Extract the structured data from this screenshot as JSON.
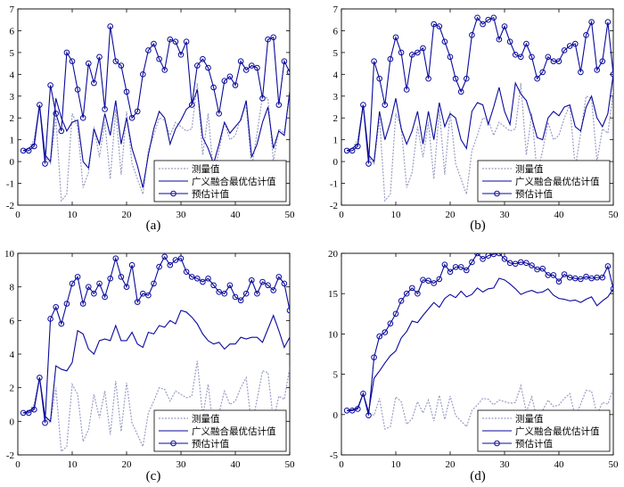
{
  "chart_data": [
    {
      "type": "line",
      "panel_label": "(a)",
      "xlim": [
        0,
        50
      ],
      "ylim": [
        -2,
        7
      ],
      "xticks": [
        0,
        10,
        20,
        30,
        40,
        50
      ],
      "yticks": [
        -2,
        -1,
        0,
        1,
        2,
        3,
        4,
        5,
        6,
        7
      ],
      "legend": [
        "测量值",
        "广义融合最优估计值",
        "预估计值"
      ],
      "legend_position": "bottom-right",
      "series": [
        {
          "name": "测量值",
          "style": "dotted-gray",
          "values": [
            0.5,
            0.6,
            1.0,
            2.6,
            0.2,
            -0.1,
            2.0,
            -1.8,
            -1.5,
            2.2,
            1.6,
            -1.2,
            -0.5,
            1.6,
            0.2,
            1.8,
            -0.8,
            2.4,
            -0.6,
            2.3,
            -0.1,
            -0.8,
            -1.5,
            0.5,
            1.2,
            2.0,
            1.9,
            1.2,
            1.8,
            1.6,
            1.4,
            1.5,
            3.6,
            0.3,
            2.2,
            -0.6,
            0.5,
            1.8,
            1.0,
            1.2,
            2.0,
            2.6,
            -0.3,
            1.3,
            3.0,
            2.9,
            0.0,
            1.5,
            1.3,
            3.2
          ]
        },
        {
          "name": "广义融合最优估计值",
          "style": "solid-blue",
          "values": [
            0.5,
            0.6,
            0.8,
            2.6,
            0.3,
            0.0,
            2.9,
            2.0,
            1.4,
            1.8,
            1.9,
            0.0,
            -0.3,
            1.5,
            0.8,
            2.2,
            1.2,
            2.8,
            0.8,
            2.0,
            0.6,
            -0.2,
            -1.2,
            0.3,
            1.5,
            2.3,
            2.0,
            0.8,
            1.5,
            1.9,
            2.4,
            2.6,
            3.3,
            1.1,
            0.6,
            -0.1,
            0.8,
            1.8,
            1.3,
            1.6,
            1.9,
            2.8,
            0.2,
            0.8,
            1.8,
            2.5,
            0.6,
            1.4,
            1.2,
            3.2
          ]
        },
        {
          "name": "预估计值",
          "style": "blue-circles",
          "values": [
            0.5,
            0.5,
            0.7,
            2.6,
            -0.1,
            3.5,
            2.2,
            1.4,
            5.0,
            4.6,
            3.3,
            2.0,
            4.5,
            3.6,
            4.8,
            2.4,
            6.2,
            4.6,
            4.4,
            3.2,
            2.0,
            2.3,
            4.0,
            5.1,
            5.4,
            4.7,
            4.2,
            5.6,
            5.5,
            4.9,
            5.5,
            2.6,
            4.4,
            4.7,
            4.3,
            3.4,
            2.2,
            3.7,
            3.9,
            3.5,
            4.6,
            4.2,
            4.4,
            4.3,
            2.9,
            5.6,
            5.7,
            2.6,
            4.6,
            4.1
          ]
        }
      ]
    },
    {
      "type": "line",
      "panel_label": "(b)",
      "xlim": [
        0,
        50
      ],
      "ylim": [
        -2,
        7
      ],
      "xticks": [
        0,
        10,
        20,
        30,
        40,
        50
      ],
      "yticks": [
        -2,
        -1,
        0,
        1,
        2,
        3,
        4,
        5,
        6,
        7
      ],
      "legend": [
        "测量值",
        "广义融合最优估计值",
        "预估计值"
      ],
      "legend_position": "bottom-right",
      "series": [
        {
          "name": "测量值",
          "style": "dotted-gray",
          "values": [
            0.5,
            0.6,
            1.0,
            2.6,
            0.2,
            -0.1,
            2.0,
            -1.8,
            -1.5,
            2.2,
            1.6,
            -1.2,
            -0.5,
            1.6,
            0.2,
            1.8,
            -0.8,
            2.4,
            -0.6,
            2.3,
            -0.1,
            -0.8,
            -1.5,
            0.5,
            1.2,
            2.0,
            1.9,
            1.2,
            1.8,
            1.6,
            1.4,
            1.5,
            3.6,
            0.3,
            2.2,
            -0.6,
            0.5,
            1.8,
            1.0,
            1.2,
            2.0,
            2.6,
            -0.3,
            1.3,
            3.0,
            2.9,
            0.0,
            1.5,
            1.3,
            3.2
          ]
        },
        {
          "name": "广义融合最优估计值",
          "style": "solid-blue",
          "values": [
            0.5,
            0.6,
            0.8,
            2.6,
            0.3,
            0.0,
            2.3,
            1.0,
            1.8,
            2.9,
            1.5,
            0.8,
            1.4,
            2.3,
            0.8,
            2.3,
            1.0,
            2.7,
            1.6,
            2.2,
            2.0,
            1.0,
            0.6,
            2.3,
            2.7,
            2.6,
            1.7,
            2.5,
            3.4,
            2.3,
            1.7,
            3.6,
            3.1,
            2.8,
            2.0,
            1.1,
            1.0,
            2.0,
            2.3,
            2.1,
            2.5,
            2.6,
            1.6,
            1.4,
            2.5,
            3.0,
            2.0,
            1.6,
            2.2,
            4.0
          ]
        },
        {
          "name": "预估计值",
          "style": "blue-circles",
          "values": [
            0.5,
            0.5,
            0.7,
            2.6,
            -0.1,
            4.6,
            3.8,
            2.6,
            4.7,
            5.7,
            5.0,
            3.3,
            4.9,
            5.0,
            5.2,
            3.8,
            6.3,
            6.2,
            5.5,
            4.8,
            3.8,
            3.2,
            3.8,
            5.8,
            6.6,
            6.3,
            6.5,
            6.6,
            5.6,
            6.2,
            5.5,
            4.9,
            4.8,
            5.4,
            4.8,
            3.8,
            4.1,
            4.8,
            4.6,
            4.6,
            5.1,
            5.3,
            5.4,
            4.1,
            5.8,
            6.4,
            4.2,
            4.6,
            6.4,
            4.0
          ]
        }
      ]
    },
    {
      "type": "line",
      "panel_label": "(c)",
      "xlim": [
        0,
        50
      ],
      "ylim": [
        -2,
        10
      ],
      "xticks": [
        0,
        10,
        20,
        30,
        40,
        50
      ],
      "yticks": [
        -2,
        0,
        2,
        4,
        6,
        8,
        10
      ],
      "legend": [
        "测量值",
        "广义融合最优估计值",
        "预估计值"
      ],
      "legend_position": "bottom-right",
      "series": [
        {
          "name": "测量值",
          "style": "dotted-gray",
          "values": [
            0.5,
            0.6,
            1.0,
            2.6,
            0.2,
            -0.1,
            2.0,
            -1.8,
            -1.5,
            2.2,
            1.6,
            -1.2,
            -0.5,
            1.6,
            0.2,
            1.8,
            -0.8,
            2.4,
            -0.6,
            2.3,
            -0.1,
            -0.8,
            -1.5,
            0.5,
            1.2,
            2.0,
            1.9,
            1.2,
            1.8,
            1.6,
            1.4,
            1.5,
            3.6,
            0.3,
            2.2,
            -0.6,
            0.5,
            1.8,
            1.0,
            1.2,
            2.0,
            2.6,
            -0.3,
            1.3,
            3.0,
            2.9,
            0.0,
            1.5,
            1.3,
            3.2
          ]
        },
        {
          "name": "广义融合最优估计值",
          "style": "solid-blue",
          "values": [
            0.5,
            0.6,
            0.8,
            2.6,
            0.3,
            0.0,
            3.3,
            3.1,
            3.0,
            3.5,
            5.4,
            5.2,
            4.3,
            4.0,
            4.8,
            4.9,
            4.8,
            5.7,
            4.8,
            4.8,
            5.3,
            4.6,
            4.4,
            5.3,
            5.2,
            5.7,
            5.6,
            6.0,
            5.8,
            6.6,
            6.5,
            6.2,
            5.8,
            5.2,
            4.8,
            4.6,
            4.7,
            4.3,
            4.6,
            4.6,
            5.0,
            4.9,
            5.0,
            5.0,
            4.7,
            5.5,
            6.3,
            5.4,
            4.4,
            5.0
          ]
        },
        {
          "name": "预估计值",
          "style": "blue-circles",
          "values": [
            0.5,
            0.5,
            0.7,
            2.6,
            -0.1,
            6.1,
            6.8,
            5.8,
            7.0,
            8.2,
            8.6,
            7.0,
            8.0,
            7.6,
            8.2,
            7.4,
            8.5,
            9.7,
            8.6,
            8.0,
            9.3,
            7.1,
            7.6,
            7.5,
            8.2,
            9.2,
            9.8,
            9.3,
            9.6,
            9.7,
            8.9,
            8.6,
            8.5,
            8.3,
            8.5,
            8.1,
            7.7,
            7.6,
            8.1,
            7.4,
            7.2,
            7.6,
            8.4,
            7.6,
            8.3,
            8.1,
            7.8,
            8.6,
            8.2,
            6.6
          ]
        }
      ]
    },
    {
      "type": "line",
      "panel_label": "(d)",
      "xlim": [
        0,
        50
      ],
      "ylim": [
        -5,
        20
      ],
      "xticks": [
        0,
        10,
        20,
        30,
        40,
        50
      ],
      "yticks": [
        -5,
        0,
        5,
        10,
        15,
        20
      ],
      "legend": [
        "测量值",
        "广义融合最优估计值",
        "预估计值"
      ],
      "legend_position": "bottom-right",
      "series": [
        {
          "name": "测量值",
          "style": "dotted-gray",
          "values": [
            0.5,
            0.6,
            1.0,
            2.6,
            0.2,
            -0.1,
            2.0,
            -1.8,
            -1.5,
            2.2,
            1.6,
            -1.2,
            -0.5,
            1.6,
            0.2,
            1.8,
            -0.8,
            2.4,
            -0.6,
            2.3,
            -0.1,
            -0.8,
            -1.5,
            0.5,
            1.2,
            2.0,
            1.9,
            1.2,
            1.8,
            1.6,
            1.4,
            1.5,
            3.6,
            0.3,
            2.2,
            -0.6,
            0.5,
            1.8,
            1.0,
            1.2,
            2.0,
            2.6,
            -0.3,
            1.3,
            3.0,
            2.9,
            0.0,
            1.5,
            1.3,
            3.2
          ]
        },
        {
          "name": "广义融合最优估计值",
          "style": "solid-blue",
          "values": [
            0.5,
            0.6,
            0.8,
            2.6,
            0.3,
            4.5,
            5.4,
            6.4,
            7.3,
            7.9,
            9.5,
            10.3,
            11.6,
            11.4,
            12.3,
            13.1,
            13.9,
            13.3,
            14.4,
            14.9,
            14.5,
            15.3,
            14.6,
            14.9,
            15.7,
            15.2,
            15.6,
            15.7,
            16.9,
            16.7,
            16.2,
            15.6,
            14.9,
            15.2,
            15.4,
            15.1,
            15.2,
            15.6,
            14.8,
            14.4,
            14.3,
            14.1,
            14.2,
            13.9,
            14.3,
            14.6,
            13.5,
            14.1,
            14.6,
            15.6
          ]
        },
        {
          "name": "预估计值",
          "style": "blue-circles",
          "values": [
            0.5,
            0.5,
            0.7,
            2.6,
            -0.1,
            7.1,
            9.7,
            10.2,
            11.3,
            12.5,
            14.1,
            15.0,
            15.7,
            15.0,
            16.7,
            16.6,
            16.3,
            16.8,
            18.6,
            17.7,
            18.3,
            18.3,
            17.9,
            18.9,
            20.0,
            19.3,
            19.7,
            19.9,
            20.0,
            19.3,
            18.8,
            18.7,
            18.9,
            18.8,
            18.5,
            18.0,
            18.1,
            17.3,
            17.3,
            16.5,
            17.4,
            17.0,
            16.9,
            16.8,
            17.1,
            16.9,
            17.0,
            17.0,
            18.4,
            15.6
          ]
        }
      ]
    }
  ]
}
